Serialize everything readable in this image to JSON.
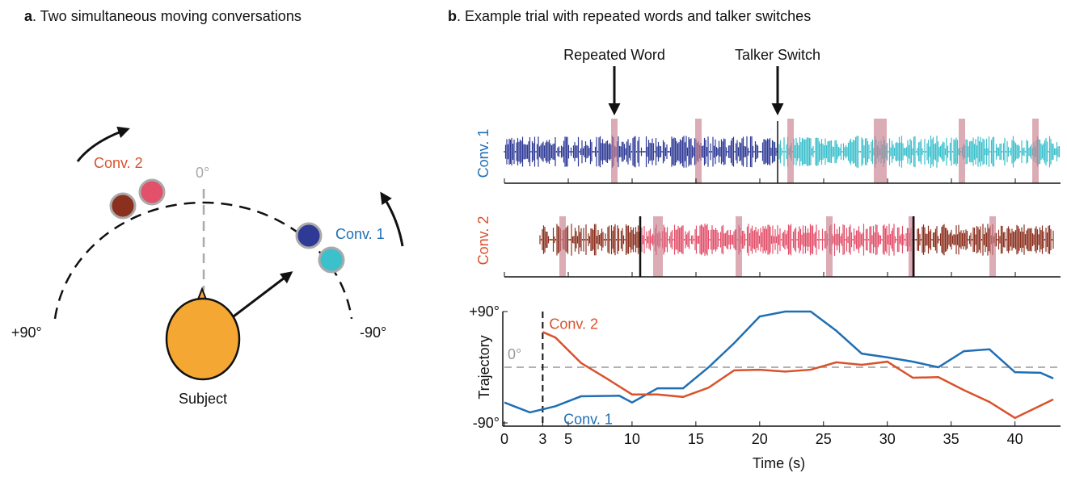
{
  "panel_a": {
    "label": "a",
    "title": ". Two simultaneous moving conversations",
    "conv2": "Conv. 2",
    "conv1": "Conv. 1",
    "zero": "0°",
    "plus90": "+90°",
    "minus90": "-90°",
    "subject": "Subject"
  },
  "panel_b": {
    "label": "b",
    "title": ". Example trial with repeated words and talker switches",
    "repeated_word": "Repeated Word",
    "talker_switch": "Talker Switch",
    "row1_label": "Conv. 1",
    "row2_label": "Conv. 2"
  },
  "chart_data": {
    "type": "line",
    "x_label": "Time (s)",
    "y_label": "Trajectory",
    "xlim": [
      0,
      43
    ],
    "xticks": [
      0,
      3,
      5,
      10,
      15,
      20,
      25,
      30,
      35,
      40
    ],
    "ylim": [
      -90,
      90
    ],
    "yticks": [
      {
        "value": -90,
        "label": "-90°"
      },
      {
        "value": 90,
        "label": "+90°"
      }
    ],
    "reference_x": 3,
    "reference_y": 0,
    "reference_y_label": "0°",
    "series": [
      {
        "name": "Conv. 1",
        "color": "#1f6fb5",
        "x": [
          0,
          2,
          4,
          6,
          9,
          10,
          12,
          14,
          16,
          18,
          20,
          22,
          24,
          26,
          28,
          30,
          32,
          34,
          36,
          38,
          40,
          42,
          43
        ],
        "values": [
          -57,
          -73,
          -63,
          -47,
          -46,
          -57,
          -34,
          -34,
          0,
          39,
          82,
          90,
          90,
          59,
          22,
          16,
          9,
          0,
          26,
          29,
          -8,
          -9,
          -18
        ]
      },
      {
        "name": "Conv. 2",
        "color": "#d9522c",
        "x": [
          3,
          4,
          6,
          8,
          10,
          12,
          14,
          16,
          18,
          20,
          22,
          24,
          26,
          28,
          30,
          32,
          34,
          36,
          38,
          40,
          43
        ],
        "values": [
          57,
          48,
          7,
          -18,
          -44,
          -44,
          -48,
          -33,
          -5,
          -4,
          -7,
          -4,
          8,
          4,
          9,
          -17,
          -16,
          -37,
          -56,
          -82,
          -52
        ]
      }
    ]
  }
}
